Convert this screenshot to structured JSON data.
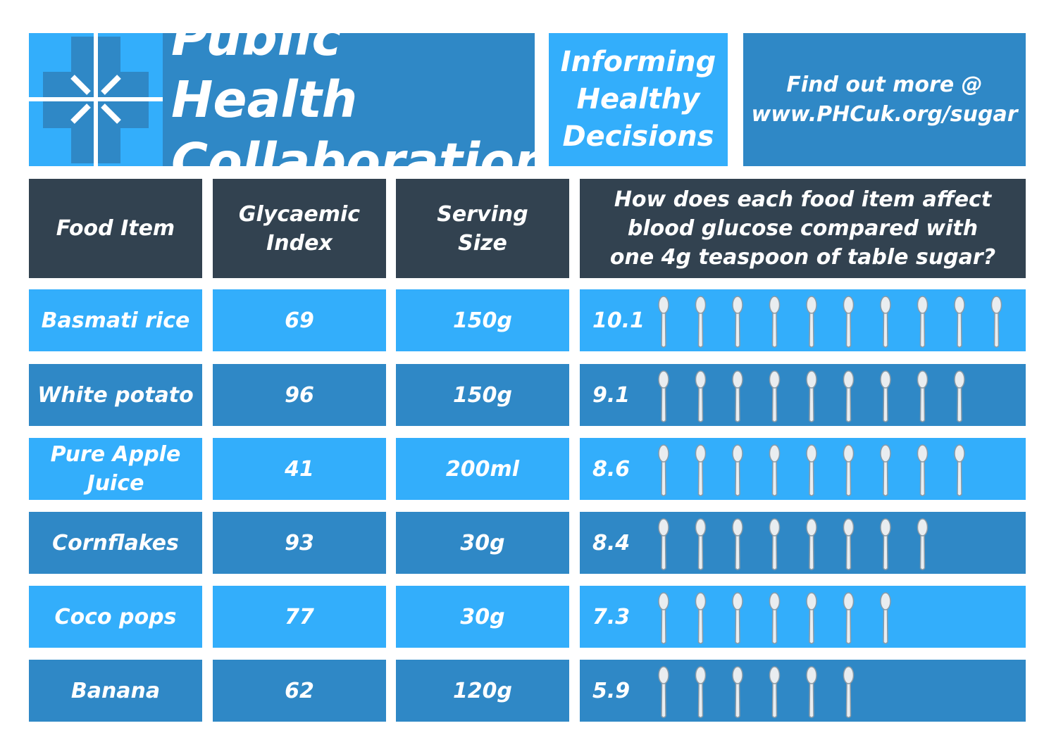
{
  "header": {
    "logo_name": "cross-arrows-logo",
    "title_line1": "Public Health",
    "title_line2": "Collaboration",
    "tagline": [
      "Informing",
      "Healthy",
      "Decisions"
    ],
    "link_line1": "Find out more @",
    "link_line2": "www.PHCuk.org/sugar"
  },
  "table": {
    "headers": {
      "food": [
        "Food Item"
      ],
      "gi": [
        "Glycaemic",
        "Index"
      ],
      "serving": [
        "Serving",
        "Size"
      ],
      "question": [
        "How does each food item affect",
        "blood glucose compared with",
        "one 4g teaspoon of table sugar?"
      ]
    }
  },
  "colors": {
    "light": "#33aefb",
    "dark": "#2f88c6",
    "header": "#324250"
  },
  "icon": "teaspoon-icon",
  "chart_data": {
    "type": "table",
    "columns": [
      "Food Item",
      "Glycaemic Index",
      "Serving Size",
      "How does each food item affect blood glucose compared with one 4g teaspoon of table sugar?"
    ],
    "rows": [
      {
        "food": [
          "Basmati rice"
        ],
        "gi": "69",
        "serving": "150g",
        "teaspoons": "10.1",
        "value": 10.1
      },
      {
        "food": [
          "White potato"
        ],
        "gi": "96",
        "serving": "150g",
        "teaspoons": "9.1",
        "value": 9.1
      },
      {
        "food": [
          "Pure Apple",
          "Juice"
        ],
        "gi": "41",
        "serving": "200ml",
        "teaspoons": "8.6",
        "value": 8.6
      },
      {
        "food": [
          "Cornflakes"
        ],
        "gi": "93",
        "serving": "30g",
        "teaspoons": "8.4",
        "value": 8.4
      },
      {
        "food": [
          "Coco pops"
        ],
        "gi": "77",
        "serving": "30g",
        "teaspoons": "7.3",
        "value": 7.3
      },
      {
        "food": [
          "Banana"
        ],
        "gi": "62",
        "serving": "120g",
        "teaspoons": "5.9",
        "value": 5.9
      }
    ]
  }
}
